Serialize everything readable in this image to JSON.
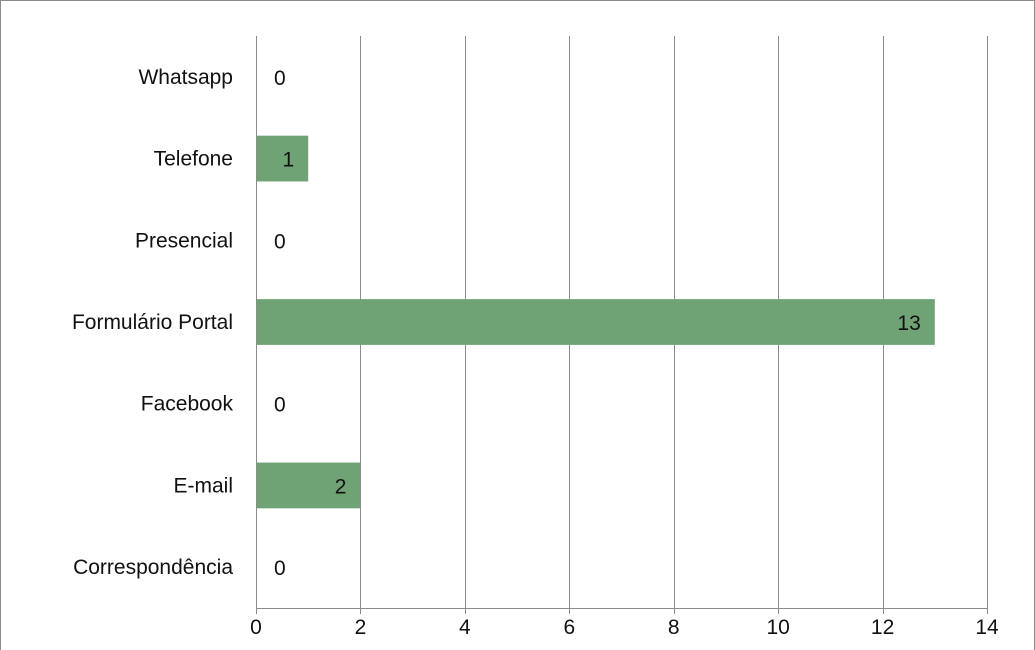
{
  "chart_data": {
    "type": "bar",
    "orientation": "horizontal",
    "title": "",
    "xlabel": "",
    "ylabel": "",
    "categories": [
      "Correspondência",
      "E-mail",
      "Facebook",
      "Formulário Portal",
      "Presencial",
      "Telefone",
      "Whatsapp"
    ],
    "values": [
      0,
      2,
      0,
      13,
      0,
      1,
      0
    ],
    "xlim": [
      0,
      14
    ],
    "x_ticks": [
      "0",
      "2",
      "4",
      "6",
      "8",
      "10",
      "12",
      "14"
    ],
    "grid": "vertical",
    "legend": "none",
    "data_labels": true
  },
  "colors": {
    "bar": "#6fa274",
    "grid": "#8c8c8c",
    "border": "#8c8c8c",
    "text": "#111111"
  }
}
